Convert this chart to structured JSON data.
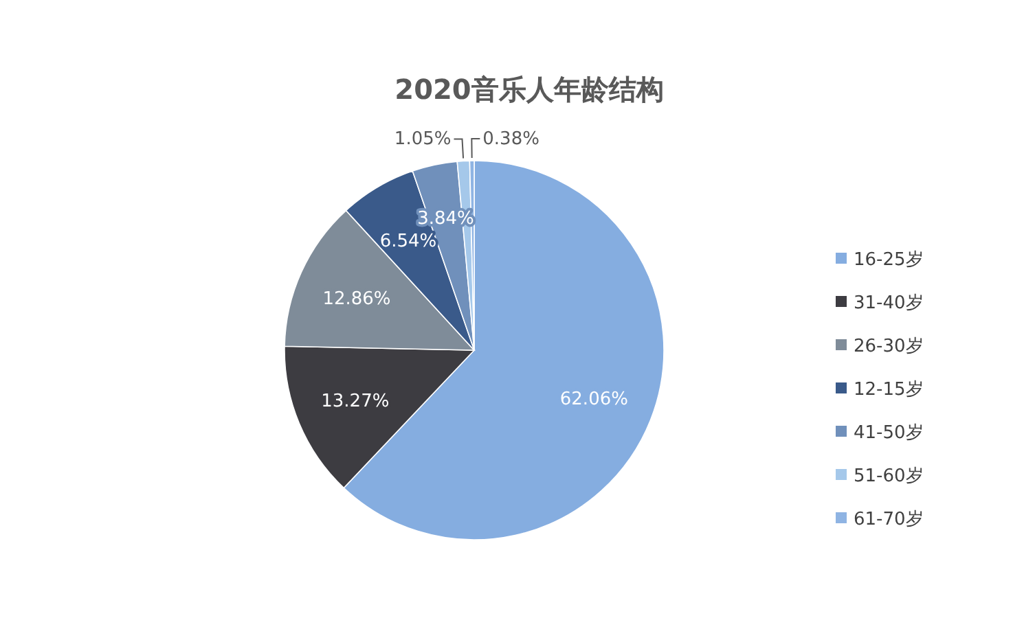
{
  "chart_data": {
    "type": "pie",
    "title": "2020音乐人年龄结构",
    "categories": [
      "16-25岁",
      "31-40岁",
      "26-30岁",
      "12-15岁",
      "41-50岁",
      "51-60岁",
      "61-70岁"
    ],
    "values": [
      62.06,
      13.27,
      12.86,
      6.54,
      3.84,
      1.05,
      0.38
    ],
    "colors": [
      "#85ade0",
      "#3d3c41",
      "#7f8c99",
      "#3a5a8a",
      "#7090bb",
      "#a5c8ea",
      "#8fb4e3"
    ],
    "value_labels": [
      "62.06%",
      "13.27%",
      "12.86%",
      "6.54%",
      "3.84%",
      "1.05%",
      "0.38%"
    ],
    "legend": "right"
  }
}
